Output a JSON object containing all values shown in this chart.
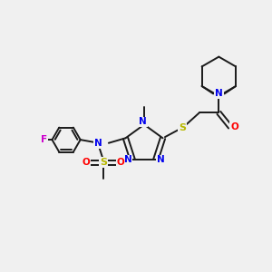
{
  "bg_color": "#f0f0f0",
  "bond_color": "#1a1a1a",
  "atom_colors": {
    "N": "#0000ee",
    "O": "#ff0000",
    "S": "#b8b800",
    "F": "#cc00cc",
    "C": "#1a1a1a"
  },
  "lw": 1.4
}
